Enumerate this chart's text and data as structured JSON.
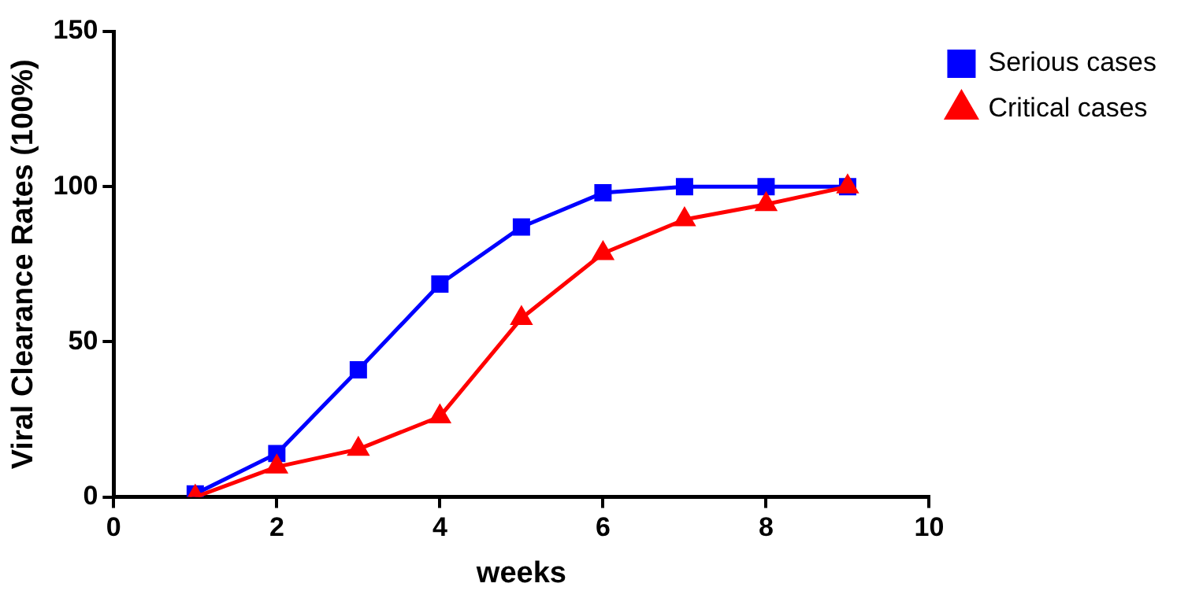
{
  "chart_data": {
    "type": "line",
    "xlabel": "weeks",
    "ylabel": "Viral Clearance Rates (100%)",
    "x": [
      1,
      2,
      3,
      4,
      5,
      6,
      7,
      8,
      9
    ],
    "series": [
      {
        "name": "Serious cases",
        "color": "#0000ff",
        "marker": "square",
        "values": [
          1,
          14,
          41,
          68.6,
          87,
          98,
          100,
          100,
          100
        ]
      },
      {
        "name": "Critical cases",
        "color": "#ff0000",
        "marker": "triangle",
        "values": [
          0,
          9.7,
          15.4,
          25.9,
          57.6,
          78.5,
          89.4,
          94.3,
          100
        ]
      }
    ],
    "xlim": [
      0,
      10
    ],
    "xticks": [
      0,
      2,
      4,
      6,
      8,
      10
    ],
    "ylim": [
      0,
      150
    ],
    "yticks": [
      0,
      50,
      100,
      150
    ],
    "grid": false,
    "legend": "top right",
    "line_style": "solid"
  }
}
